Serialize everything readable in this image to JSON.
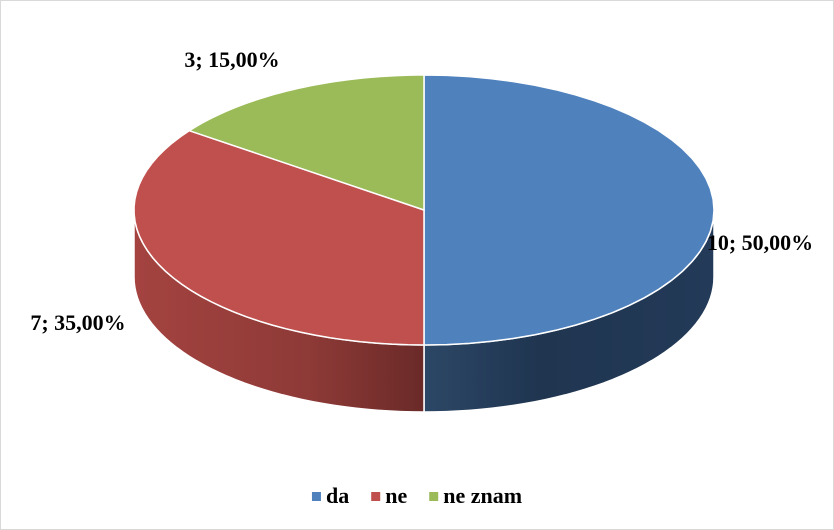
{
  "chart_data": {
    "type": "pie",
    "categories": [
      "da",
      "ne",
      "ne znam"
    ],
    "values": [
      10,
      7,
      3
    ],
    "value_labels": [
      "10; 50,00%",
      "7; 35,00%",
      "3; 15,00%"
    ],
    "colors": [
      "#4f81bd",
      "#c0504d",
      "#9bbb59"
    ],
    "legend": "bottom"
  }
}
